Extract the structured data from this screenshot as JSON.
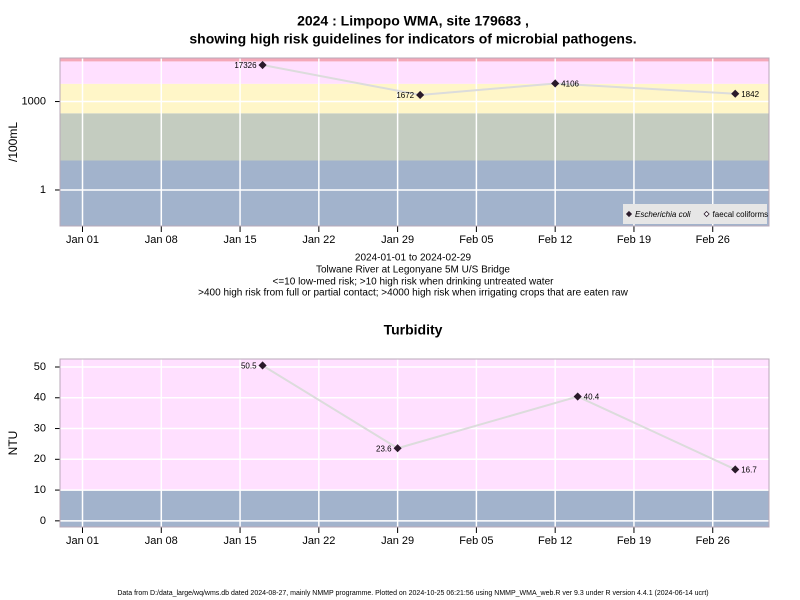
{
  "chart_data": [
    {
      "type": "line",
      "title": [
        "2024 : Limpopo WMA, site 179683 ,",
        "showing high risk guidelines for indicators of microbial pathogens."
      ],
      "y_label": "/100mL",
      "log_y": true,
      "ylim": [
        0.06,
        30000
      ],
      "yticks": [
        1,
        1000
      ],
      "xlim": [
        "2023-12-30",
        "2024-03-02"
      ],
      "xticks": [
        {
          "value": "2024-01-01",
          "label": "Jan 01"
        },
        {
          "value": "2024-01-08",
          "label": "Jan 08"
        },
        {
          "value": "2024-01-15",
          "label": "Jan 15"
        },
        {
          "value": "2024-01-22",
          "label": "Jan 22"
        },
        {
          "value": "2024-01-29",
          "label": "Jan 29"
        },
        {
          "value": "2024-02-05",
          "label": "Feb 05"
        },
        {
          "value": "2024-02-12",
          "label": "Feb 12"
        },
        {
          "value": "2024-02-19",
          "label": "Feb 19"
        },
        {
          "value": "2024-02-26",
          "label": "Feb 26"
        }
      ],
      "thresholds": [
        10,
        400,
        4000,
        23000
      ],
      "band_colors": [
        "#a2b3cc",
        "#c4ccc0",
        "#fff6c8",
        "#ffe0ff",
        "#f5a8b8"
      ],
      "grid": true,
      "legend": "bottomright",
      "line_color": "#dcdcdc",
      "series": [
        {
          "name": "Escherichia coli",
          "marker": "filled",
          "color": "#2a1a2a",
          "x": [
            "2024-01-17",
            "2024-01-31",
            "2024-02-12",
            "2024-02-28"
          ],
          "values": [
            17326,
            1672,
            4106,
            1842
          ]
        },
        {
          "name": "faecal coliforms",
          "marker": "open",
          "color": "#2a1a2a",
          "x": [],
          "values": []
        }
      ]
    },
    {
      "type": "line",
      "title": [
        "Turbidity"
      ],
      "y_label": "NTU",
      "log_y": false,
      "ylim": [
        -2,
        52.6
      ],
      "yticks": [
        0,
        10,
        20,
        30,
        40,
        50
      ],
      "xlim": [
        "2023-12-30",
        "2024-03-02"
      ],
      "xticks": [
        {
          "value": "2024-01-01",
          "label": "Jan 01"
        },
        {
          "value": "2024-01-08",
          "label": "Jan 08"
        },
        {
          "value": "2024-01-15",
          "label": "Jan 15"
        },
        {
          "value": "2024-01-22",
          "label": "Jan 22"
        },
        {
          "value": "2024-01-29",
          "label": "Jan 29"
        },
        {
          "value": "2024-02-05",
          "label": "Feb 05"
        },
        {
          "value": "2024-02-12",
          "label": "Feb 12"
        },
        {
          "value": "2024-02-19",
          "label": "Feb 19"
        },
        {
          "value": "2024-02-26",
          "label": "Feb 26"
        }
      ],
      "thresholds": [
        10
      ],
      "band_colors": [
        "#a2b3cc",
        "#ffe0ff"
      ],
      "grid": true,
      "line_color": "#dcdcdc",
      "series": [
        {
          "marker": "filled",
          "color": "#2a1a2a",
          "x": [
            "2024-01-17",
            "2024-01-29",
            "2024-02-14",
            "2024-02-28"
          ],
          "values": [
            50.5,
            23.6,
            40.4,
            16.7
          ]
        }
      ]
    }
  ],
  "notes": [
    "2024-01-01 to 2024-02-29",
    "Tolwane River at Legonyane 5M U/S Bridge",
    "<=10 low-med risk; >10 high risk when drinking untreated water",
    ">400 high risk from full or partial contact; >4000 high risk when irrigating crops that are eaten raw"
  ],
  "footer": "Data from D:/data_large/wq/wms.db dated 2024-08-27, mainly NMMP programme. Plotted on 2024-10-25 06:21:56 using NMMP_WMA_web.R ver 9.3 under R version 4.4.1 (2024-06-14 ucrt)"
}
